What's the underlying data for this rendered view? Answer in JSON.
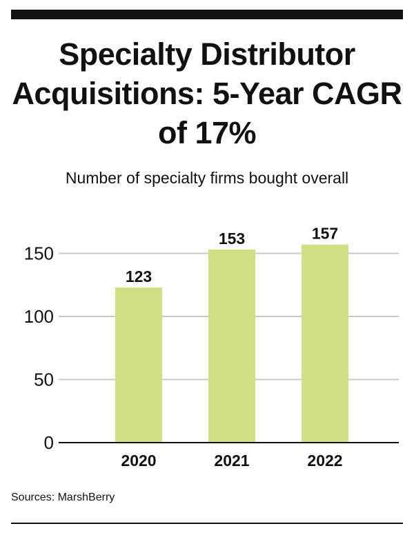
{
  "header": {
    "title": "Specialty Distributor Acquisitions: 5-Year CAGR of 17%",
    "subtitle": "Number of specialty firms bought overall"
  },
  "footer": {
    "source": "Sources: MarshBerry"
  },
  "colors": {
    "bar": "#d3df87",
    "grid": "#c8c8c8",
    "axis": "#111111",
    "text": "#111111"
  },
  "chart_data": {
    "type": "bar",
    "categories": [
      "2020",
      "2021",
      "2022"
    ],
    "values": [
      123,
      153,
      157
    ],
    "data_labels": [
      "123",
      "153",
      "157"
    ],
    "yticks": [
      0,
      50,
      100,
      150
    ],
    "ylim": [
      0,
      150
    ],
    "title": "",
    "xlabel": "",
    "ylabel": "",
    "grid": true,
    "legend": "none"
  }
}
